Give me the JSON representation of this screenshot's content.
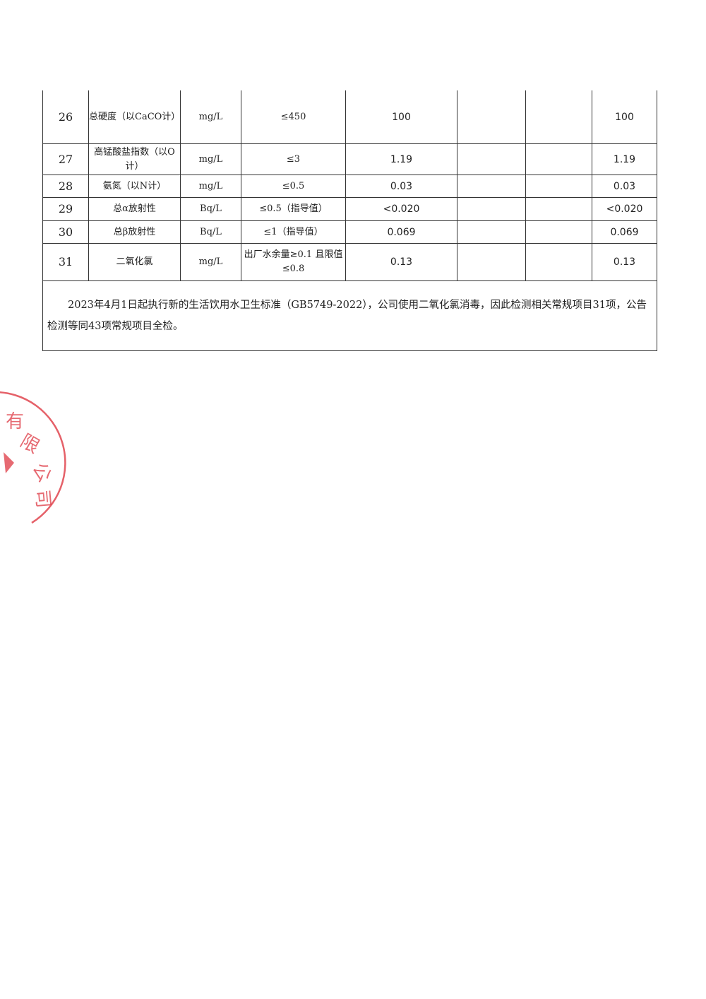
{
  "rows": [
    {
      "no": "26",
      "item": "总硬度（以CaCO计）",
      "unit": "mg/L",
      "limit": "≤450",
      "value": "100",
      "c6": "",
      "c7": "",
      "c8": "100"
    },
    {
      "no": "27",
      "item": "高锰酸盐指数（以O计）",
      "unit": "mg/L",
      "limit": "≤3",
      "value": "1.19",
      "c6": "",
      "c7": "",
      "c8": "1.19"
    },
    {
      "no": "28",
      "item": "氨氮（以N计）",
      "unit": "mg/L",
      "limit": "≤0.5",
      "value": "0.03",
      "c6": "",
      "c7": "",
      "c8": "0.03"
    },
    {
      "no": "29",
      "item": "总α放射性",
      "unit": "Bq/L",
      "limit": "≤0.5（指导值）",
      "value": "<0.020",
      "c6": "",
      "c7": "",
      "c8": "<0.020"
    },
    {
      "no": "30",
      "item": "总β放射性",
      "unit": "Bq/L",
      "limit": "≤1（指导值）",
      "value": "0.069",
      "c6": "",
      "c7": "",
      "c8": "0.069"
    },
    {
      "no": "31",
      "item": "二氧化氯",
      "unit": "mg/L",
      "limit": "出厂水余量≥0.1 且限值≤0.8",
      "value": "0.13",
      "c6": "",
      "c7": "",
      "c8": "0.13"
    }
  ],
  "note": "2023年4月1日起执行新的生活饮用水卫生标准（GB5749-2022），公司使用二氧化氯消毒，因此检测相关常规项目31项，公告检测等同43项常规项目全检。",
  "stamp": {
    "text": "有限公司",
    "color": "#e0454f"
  }
}
